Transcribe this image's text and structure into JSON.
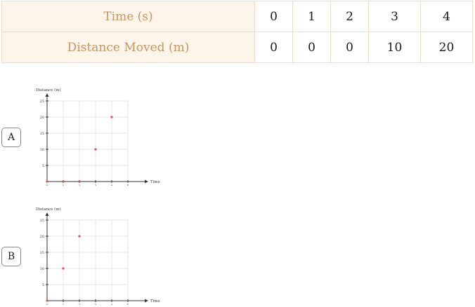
{
  "table": {
    "rows": [
      {
        "label": "Time (s)",
        "values": [
          "0",
          "1",
          "2",
          "3",
          "4"
        ]
      },
      {
        "label": "Distance Moved (m)",
        "values": [
          "0",
          "0",
          "0",
          "10",
          "20"
        ]
      }
    ]
  },
  "options": [
    {
      "label": "A"
    },
    {
      "label": "B"
    }
  ],
  "colors": {
    "header_bg": "#fdf4ea",
    "header_text": "#c89660",
    "grid": "#e6e6e6",
    "point": "#e0534a"
  },
  "chart_data": [
    {
      "type": "scatter",
      "ylabel": "Distance (m)",
      "xlabel": "Time (s)",
      "xlim": [
        0,
        5
      ],
      "ylim": [
        0,
        25
      ],
      "xticks": [
        0,
        1,
        2,
        3,
        4,
        5
      ],
      "yticks": [
        5,
        10,
        15,
        20,
        25
      ],
      "grid": true,
      "series": [
        {
          "x": [
            0,
            1,
            2,
            3,
            4
          ],
          "y": [
            0,
            0,
            0,
            10,
            20
          ]
        }
      ]
    },
    {
      "type": "scatter",
      "ylabel": "Distance (m)",
      "xlabel": "Time (s)",
      "xlim": [
        0,
        5
      ],
      "ylim": [
        0,
        25
      ],
      "xticks": [
        0,
        1,
        2,
        3,
        4,
        5
      ],
      "yticks": [
        5,
        10,
        15,
        20,
        25
      ],
      "grid": true,
      "series": [
        {
          "x": [
            0,
            1,
            2
          ],
          "y": [
            0,
            10,
            20
          ]
        }
      ]
    }
  ]
}
